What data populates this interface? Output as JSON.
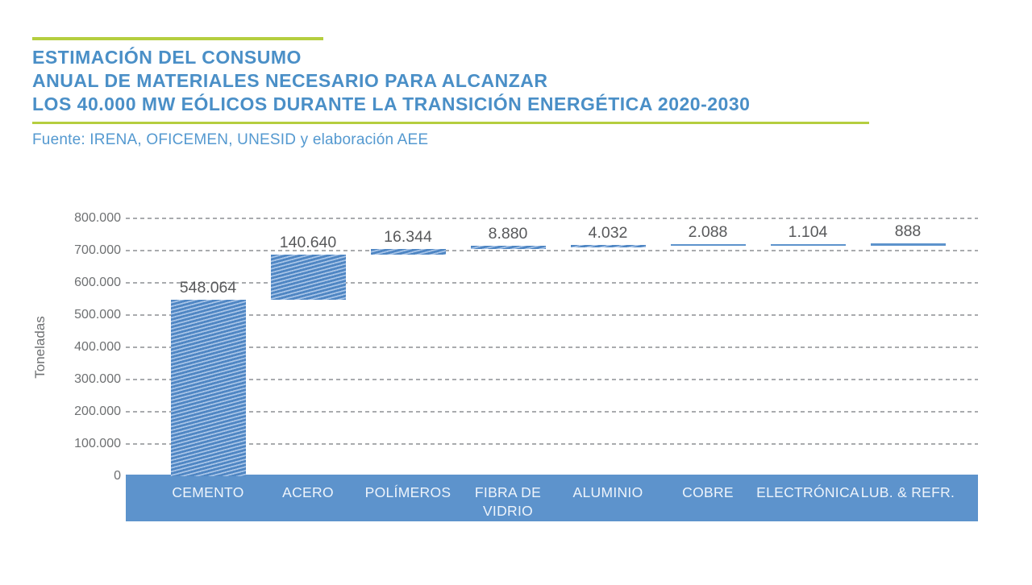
{
  "header": {
    "title_lines": [
      "ESTIMACIÓN DEL CONSUMO",
      "ANUAL DE MATERIALES NECESARIO PARA ALCANZAR",
      "LOS 40.000 MW EÓLICOS DURANTE LA TRANSICIÓN ENERGÉTICA 2020-2030"
    ],
    "source": "Fuente: IRENA, OFICEMEN, UNESID y elaboración AEE"
  },
  "colors": {
    "accent_green": "#b5ce3f",
    "title_blue": "#4a8fc7",
    "source_blue": "#5499d0",
    "bar_blue": "#5d93cc",
    "stripe_dark_blue": "#4f86c3",
    "stripe_light_blue": "#a9c5e8",
    "gridline_gray": "#a9abae",
    "axis_text_gray": "#6e7072",
    "value_text_gray": "#58595b",
    "band_label_white": "#eef4fb"
  },
  "chart_data": {
    "type": "bar",
    "subtype": "waterfall-cumulative",
    "title": "ESTIMACIÓN DEL CONSUMO ANUAL DE MATERIALES NECESARIO PARA ALCANZAR LOS 40.000 MW EÓLICOS DURANTE LA TRANSICIÓN ENERGÉTICA 2020-2030",
    "xlabel": "",
    "ylabel": "Toneladas",
    "ylim": [
      0,
      800000
    ],
    "grid": "horizontal-dashed",
    "legend": "none",
    "bar_style": "diagonal-striped-blue",
    "categories": [
      "CEMENTO",
      "ACERO",
      "POLÍMEROS",
      "FIBRA DE VIDRIO",
      "ALUMINIO",
      "COBRE",
      "ELECTRÓNICA",
      "LUB. & REFR."
    ],
    "values": [
      548064,
      140640,
      16344,
      8880,
      4032,
      2088,
      1104,
      888
    ],
    "value_labels": [
      "548.064",
      "140.640",
      "16.344",
      "8.880",
      "4.032",
      "2.088",
      "1.104",
      "888"
    ],
    "yticks": [
      {
        "value": 0,
        "label": "0"
      },
      {
        "value": 100000,
        "label": "100.000"
      },
      {
        "value": 200000,
        "label": "200.000"
      },
      {
        "value": 300000,
        "label": "300.000"
      },
      {
        "value": 400000,
        "label": "400.000"
      },
      {
        "value": 500000,
        "label": "500.000"
      },
      {
        "value": 600000,
        "label": "600.000"
      },
      {
        "value": 700000,
        "label": "700.000"
      },
      {
        "value": 800000,
        "label": "800.000"
      }
    ]
  }
}
